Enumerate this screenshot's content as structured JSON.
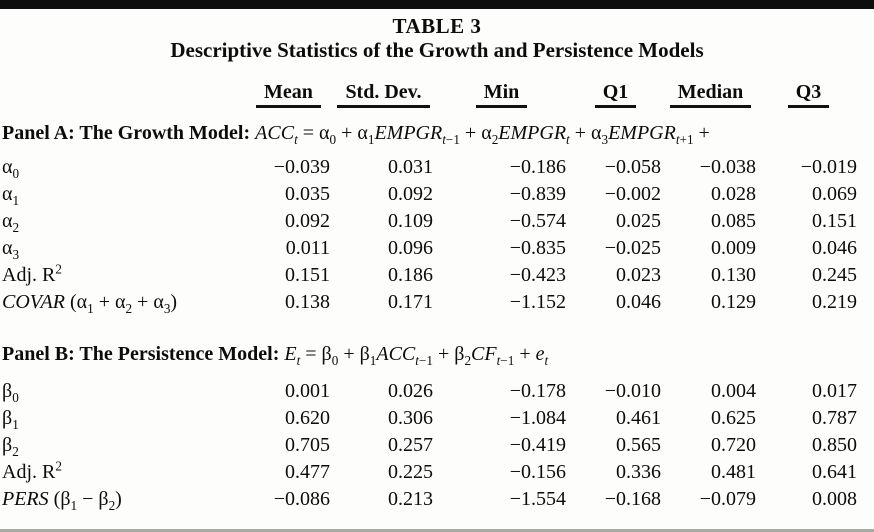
{
  "page": {
    "title": "TABLE 3",
    "subtitle": "Descriptive Statistics of the Growth and Persistence Models",
    "rule_color": "#0e0e0e",
    "text_color": "#0c0c0c",
    "background_color": "#fdfdfb"
  },
  "table": {
    "columns": [
      "Mean",
      "Std. Dev.",
      "Min",
      "Q1",
      "Median",
      "Q3"
    ],
    "panels": [
      {
        "name": "panel-a",
        "label": "Panel A: The Growth Model:",
        "formula_html": "<i>ACC</i><sub><i>t</i></sub> = α<sub>0</sub> + α<sub>1</sub><i>EMPGR</i><sub><i>t</i>−1</sub> + α<sub>2</sub><i>EMPGR</i><sub><i>t</i></sub> + α<sub>3</sub><i>EMPGR</i><sub><i>t</i>+1</sub> +",
        "rows": [
          {
            "label_html": "α<sub>0</sub>",
            "values": [
              "−0.039",
              "0.031",
              "−0.186",
              "−0.058",
              "−0.038",
              "−0.019"
            ]
          },
          {
            "label_html": "α<sub>1</sub>",
            "values": [
              "0.035",
              "0.092",
              "−0.839",
              "−0.002",
              "0.028",
              "0.069"
            ]
          },
          {
            "label_html": "α<sub>2</sub>",
            "values": [
              "0.092",
              "0.109",
              "−0.574",
              "0.025",
              "0.085",
              "0.151"
            ]
          },
          {
            "label_html": "α<sub>3</sub>",
            "values": [
              "0.011",
              "0.096",
              "−0.835",
              "−0.025",
              "0.009",
              "0.046"
            ]
          },
          {
            "label_html": "Adj. R<sup>2</sup>",
            "values": [
              "0.151",
              "0.186",
              "−0.423",
              "0.023",
              "0.130",
              "0.245"
            ]
          },
          {
            "label_html": "<i>COVAR</i> (α<sub>1</sub> + α<sub>2</sub> + α<sub>3</sub>)",
            "values": [
              "0.138",
              "0.171",
              "−1.152",
              "0.046",
              "0.129",
              "0.219"
            ]
          }
        ]
      },
      {
        "name": "panel-b",
        "label": "Panel B: The Persistence Model:",
        "formula_html": "<i>E</i><sub><i>t</i></sub> = β<sub>0</sub> + β<sub>1</sub><i>ACC</i><sub><i>t</i>−1</sub> + β<sub>2</sub><i>CF</i><sub><i>t</i>−1</sub> + <i>e</i><sub><i>t</i></sub>",
        "rows": [
          {
            "label_html": "β<sub>0</sub>",
            "values": [
              "0.001",
              "0.026",
              "−0.178",
              "−0.010",
              "0.004",
              "0.017"
            ]
          },
          {
            "label_html": "β<sub>1</sub>",
            "values": [
              "0.620",
              "0.306",
              "−1.084",
              "0.461",
              "0.625",
              "0.787"
            ]
          },
          {
            "label_html": "β<sub>2</sub>",
            "values": [
              "0.705",
              "0.257",
              "−0.419",
              "0.565",
              "0.720",
              "0.850"
            ]
          },
          {
            "label_html": "Adj. R<sup>2</sup>",
            "values": [
              "0.477",
              "0.225",
              "−0.156",
              "0.336",
              "0.481",
              "0.641"
            ]
          },
          {
            "label_html": "<i>PERS</i> (β<sub>1</sub> − β<sub>2</sub>)",
            "values": [
              "−0.086",
              "0.213",
              "−1.554",
              "−0.168",
              "−0.079",
              "0.008"
            ]
          }
        ]
      }
    ]
  }
}
